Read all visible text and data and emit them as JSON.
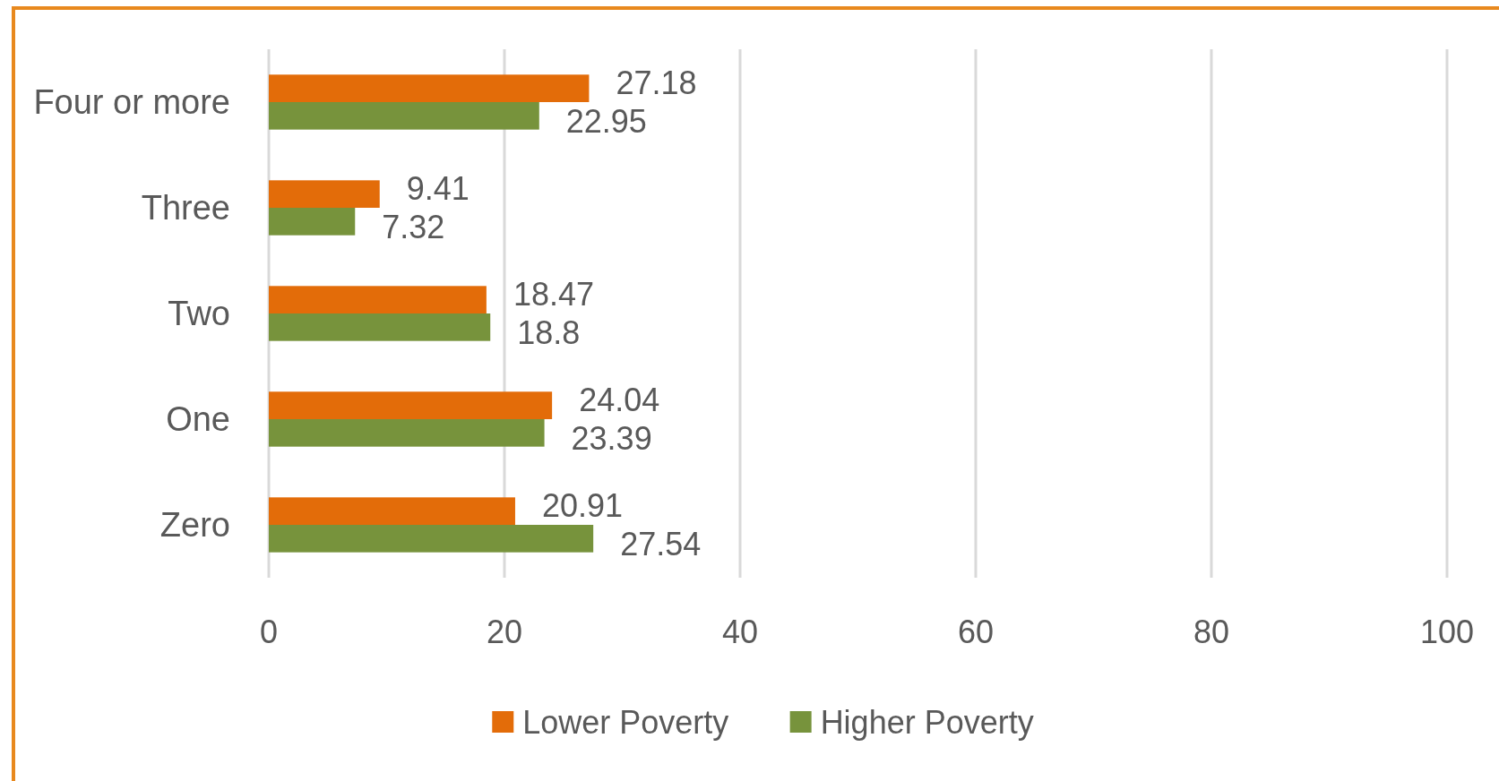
{
  "chart_data": {
    "type": "bar",
    "orientation": "horizontal",
    "categories": [
      "Four or more",
      "Three",
      "Two",
      "One",
      "Zero"
    ],
    "series": [
      {
        "name": "Lower Poverty",
        "color": "#e36c09",
        "values": [
          27.18,
          9.41,
          18.47,
          24.04,
          20.91
        ]
      },
      {
        "name": "Higher Poverty",
        "color": "#77933c",
        "values": [
          22.95,
          7.32,
          18.8,
          23.39,
          27.54
        ]
      }
    ],
    "xlim": [
      0,
      100
    ],
    "xticks": [
      0,
      20,
      40,
      60,
      80,
      100
    ],
    "grid": "x",
    "legend": "bottom",
    "data_labels": true
  }
}
